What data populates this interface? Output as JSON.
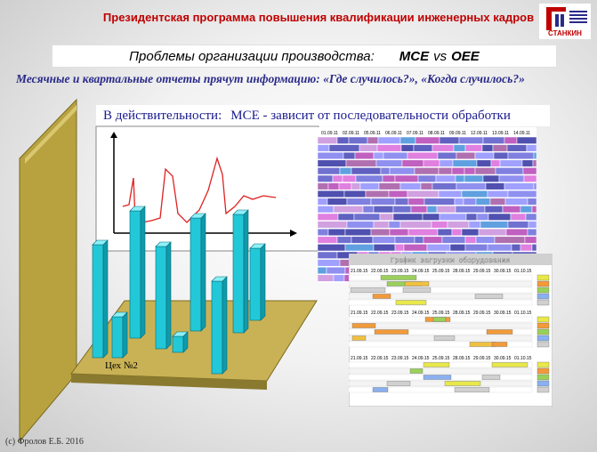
{
  "header": {
    "title": "Президентская программа повышения квалификации инженерных кадров",
    "logo_text": "СТАНКИН"
  },
  "subtitle": {
    "text": "Проблемы организации производства:",
    "term1": "MCE",
    "vs": "vs",
    "term2": "OEE"
  },
  "tagline": "Месячные и квартальные отчеты прячут информацию: «Где случилось?», «Когда случилось?»",
  "reality": {
    "prefix": "В действительности:",
    "statement": "MCE - зависит от последовательности обработки"
  },
  "workshop": {
    "label": "Цех №2",
    "bar_levels": [
      0.55,
      0.2,
      0.62,
      0.5,
      0.08,
      0.55,
      0.45,
      0.58,
      0.35
    ]
  },
  "schedule_top": {
    "dates": [
      "01.09.11",
      "02.09.11",
      "05.09.11",
      "06.09.11",
      "07.09.11",
      "08.09.11",
      "09.09.11",
      "12.09.11",
      "13.09.11",
      "14.09.11"
    ]
  },
  "schedule_bottom": {
    "title": "График загрузки оборудования",
    "dates": [
      "21.09.15",
      "22.09.15",
      "23.09.15",
      "24.09.15",
      "25.09.15",
      "28.09.15",
      "29.09.15",
      "30.09.15",
      "01.10.15"
    ]
  },
  "footer": {
    "copyright": "(с) Фролов  Е.Б. 2016"
  }
}
